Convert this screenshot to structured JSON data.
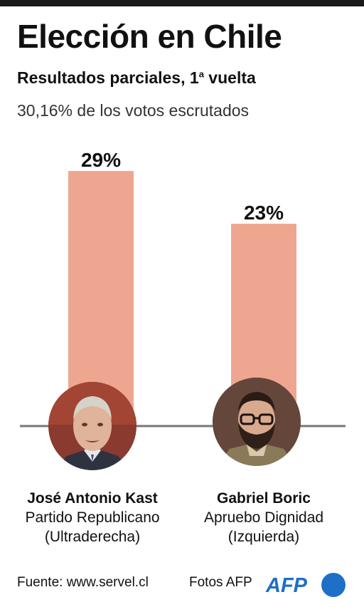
{
  "header": {
    "title": "Elección en Chile",
    "subtitle_main": "Resultados parciales, 1",
    "subtitle_sup": "a",
    "subtitle_end": " vuelta",
    "note": "30,16% de los votos escrutados"
  },
  "chart_data": {
    "type": "bar",
    "title": "Elección en Chile",
    "subtitle": "Resultados parciales, 1ª vuelta",
    "categories": [
      "José Antonio Kast",
      "Gabriel Boric"
    ],
    "values": [
      29,
      23
    ],
    "labels": [
      "29%",
      "23%"
    ],
    "ylim": [
      0,
      29
    ],
    "bar_color": "#eea690",
    "axis_color": "#777777",
    "grid": false,
    "legend": "none"
  },
  "candidates": [
    {
      "name": "José Antonio Kast",
      "party": "Partido Republicano",
      "ideology": "(Ultraderecha)"
    },
    {
      "name": "Gabriel Boric",
      "party": "Apruebo Dignidad",
      "ideology": "(Izquierda)"
    }
  ],
  "footer": {
    "source": "Fuente: www.servel.cl",
    "photos": "Fotos AFP",
    "logo": "AFP",
    "logo_color": "#1e6fc7"
  }
}
